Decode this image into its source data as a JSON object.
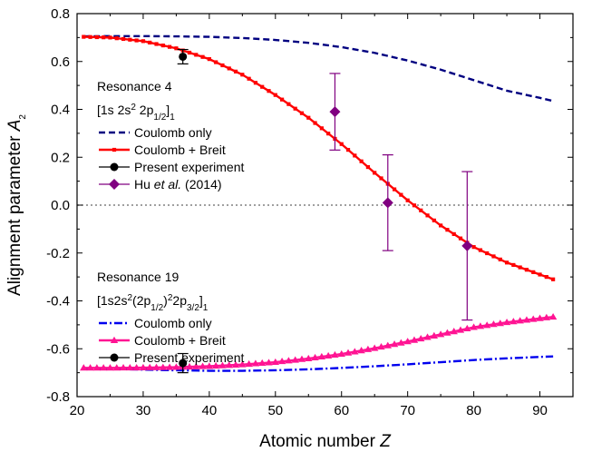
{
  "chart_data": {
    "type": "line",
    "title": "",
    "xlabel": {
      "text": "Atomic number ",
      "italic": "Z"
    },
    "ylabel": {
      "text": "Alignment parameter ",
      "italic": "A",
      "sub": "2"
    },
    "xlim": [
      20,
      95
    ],
    "ylim": [
      -0.8,
      0.8
    ],
    "xticks": [
      20,
      30,
      40,
      50,
      60,
      70,
      80,
      90
    ],
    "yticks": [
      -0.8,
      -0.6,
      -0.4,
      -0.2,
      0.0,
      0.2,
      0.4,
      0.6,
      0.8
    ],
    "ytick_labels": [
      "-0.8",
      "-0.6",
      "-0.4",
      "-0.2",
      "0.0",
      "0.2",
      "0.4",
      "0.6",
      "0.8"
    ],
    "zero_line": {
      "y": 0,
      "style": "dotted",
      "color": "#808080"
    },
    "grid": false,
    "groups": [
      {
        "title": "Resonance 4",
        "config_parts": [
          {
            "t": "[1s 2s"
          },
          {
            "t": "2",
            "sup": true
          },
          {
            "t": " 2p"
          },
          {
            "t": "1/2",
            "sub": true
          },
          {
            "t": "]"
          },
          {
            "t": "1",
            "sub": true
          }
        ],
        "legend_position": "upper-left"
      },
      {
        "title": "Resonance 19",
        "config_parts": [
          {
            "t": "[1s2s"
          },
          {
            "t": "2",
            "sup": true
          },
          {
            "t": "(2p"
          },
          {
            "t": "1/2",
            "sub": true
          },
          {
            "t": ")"
          },
          {
            "t": "2",
            "sup": true
          },
          {
            "t": "2p"
          },
          {
            "t": "3/2",
            "sub": true
          },
          {
            "t": "]"
          },
          {
            "t": "1",
            "sub": true
          }
        ],
        "legend_position": "lower-left"
      }
    ],
    "series": [
      {
        "group": 0,
        "name": "Coulomb only",
        "kind": "line",
        "color": "#000080",
        "dash": "7,4",
        "x": [
          21,
          25,
          30,
          35,
          40,
          45,
          50,
          55,
          60,
          65,
          70,
          75,
          80,
          85,
          90,
          92
        ],
        "y": [
          0.705,
          0.706,
          0.706,
          0.705,
          0.703,
          0.698,
          0.69,
          0.678,
          0.66,
          0.636,
          0.604,
          0.566,
          0.522,
          0.478,
          0.448,
          0.435
        ]
      },
      {
        "group": 0,
        "name": "Coulomb + Breit",
        "kind": "line-marker",
        "color": "#ff0000",
        "marker": "square",
        "x": [
          21,
          25,
          30,
          35,
          40,
          45,
          50,
          55,
          60,
          65,
          70,
          75,
          80,
          85,
          90,
          92
        ],
        "y": [
          0.703,
          0.7,
          0.685,
          0.655,
          0.61,
          0.545,
          0.46,
          0.365,
          0.255,
          0.135,
          0.02,
          -0.085,
          -0.175,
          -0.24,
          -0.29,
          -0.31
        ]
      },
      {
        "group": 0,
        "name": "Present experiment",
        "kind": "errorbar",
        "color": "#000000",
        "marker": "circle",
        "points": [
          {
            "x": 36,
            "y": 0.62,
            "err": 0.03
          }
        ]
      },
      {
        "group": 0,
        "name_parts": [
          {
            "t": "Hu "
          },
          {
            "t": "et al.",
            "italic": true
          },
          {
            "t": " (2014)"
          }
        ],
        "kind": "errorbar",
        "color": "#800080",
        "marker": "diamond",
        "points": [
          {
            "x": 59,
            "y": 0.39,
            "err": 0.16
          },
          {
            "x": 67,
            "y": 0.01,
            "err": 0.2
          },
          {
            "x": 79,
            "y": -0.17,
            "err": 0.31
          }
        ]
      },
      {
        "group": 1,
        "name": "Coulomb only",
        "kind": "line",
        "color": "#0000ee",
        "dash": "9,3,2,3",
        "x": [
          21,
          25,
          30,
          35,
          40,
          45,
          50,
          55,
          60,
          65,
          70,
          75,
          80,
          85,
          90,
          92
        ],
        "y": [
          -0.682,
          -0.684,
          -0.687,
          -0.69,
          -0.692,
          -0.692,
          -0.69,
          -0.686,
          -0.68,
          -0.673,
          -0.665,
          -0.656,
          -0.647,
          -0.64,
          -0.634,
          -0.632
        ]
      },
      {
        "group": 1,
        "name": "Coulomb + Breit",
        "kind": "line-marker",
        "color": "#ff1493",
        "marker": "triangle",
        "x": [
          21,
          25,
          30,
          35,
          40,
          45,
          50,
          55,
          60,
          65,
          70,
          75,
          80,
          85,
          90,
          92
        ],
        "y": [
          -0.68,
          -0.68,
          -0.679,
          -0.677,
          -0.673,
          -0.666,
          -0.656,
          -0.641,
          -0.622,
          -0.598,
          -0.57,
          -0.54,
          -0.51,
          -0.49,
          -0.473,
          -0.467
        ]
      },
      {
        "group": 1,
        "name": "Present experiment",
        "kind": "errorbar",
        "color": "#000000",
        "marker": "circle",
        "points": [
          {
            "x": 36,
            "y": -0.66,
            "err": 0.04
          }
        ]
      }
    ]
  }
}
